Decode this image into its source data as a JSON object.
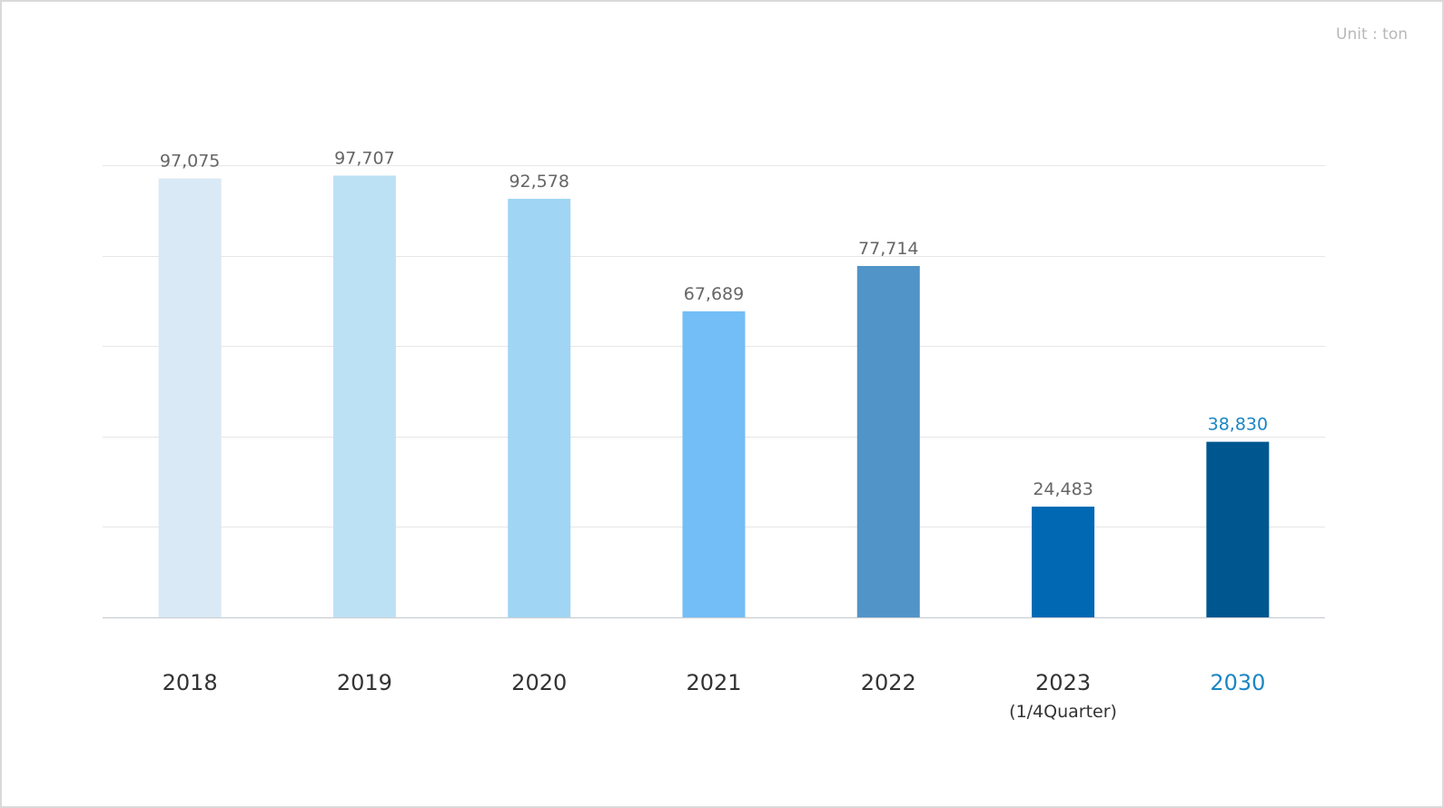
{
  "unit_label": "Unit : ton",
  "colors": {
    "gridline": "#e6e6e6",
    "baseline": "#c9cdd2",
    "value_label": "#666666",
    "category_label": "#333333",
    "highlight": "#1a86c4"
  },
  "chart_data": {
    "type": "bar",
    "title": "",
    "xlabel": "",
    "ylabel": "",
    "ylim": [
      0,
      100000
    ],
    "grid": true,
    "categories": [
      "2018",
      "2019",
      "2020",
      "2021",
      "2022",
      "2023",
      "2030"
    ],
    "category_sublabels": [
      "",
      "",
      "",
      "",
      "",
      "(1/4Quarter)",
      ""
    ],
    "values": [
      97075,
      97707,
      92578,
      67689,
      77714,
      24483,
      38830
    ],
    "value_labels": [
      "97,075",
      "97,707",
      "92,578",
      "67,689",
      "77,714",
      "24,483",
      "38,830"
    ],
    "bar_colors": [
      "#d9e9f5",
      "#bde1f4",
      "#a0d6f3",
      "#73bef6",
      "#5194c8",
      "#0168b4",
      "#00568f"
    ],
    "highlight_index": 6
  }
}
